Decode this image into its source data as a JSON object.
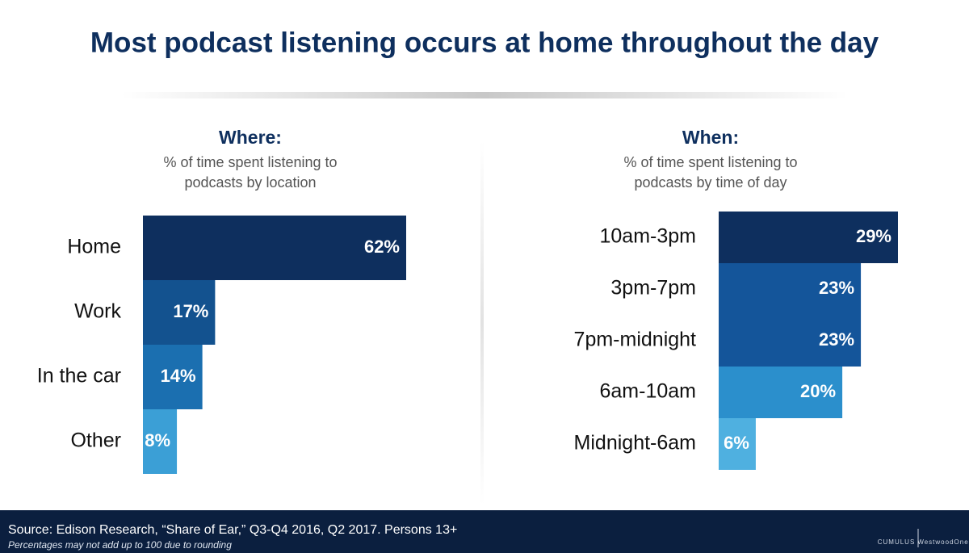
{
  "title": "Most podcast listening occurs at home throughout the day",
  "chart_data": [
    {
      "type": "bar",
      "orientation": "horizontal",
      "title": "Where:",
      "subtitle": [
        "% of time spent listening to",
        "podcasts by location"
      ],
      "categories": [
        "Home",
        "Work",
        "In the car",
        "Other"
      ],
      "values": [
        62,
        17,
        14,
        8
      ],
      "value_labels": [
        "62%",
        "17%",
        "14%",
        "8%"
      ],
      "colors": [
        "#0e2f5e",
        "#13528f",
        "#1b6fb0",
        "#3b9fd6"
      ]
    },
    {
      "type": "bar",
      "orientation": "horizontal",
      "title": "When:",
      "subtitle": [
        "% of time spent listening to",
        "podcasts by time of day"
      ],
      "categories": [
        "10am-3pm",
        "3pm-7pm",
        "7pm-midnight",
        "6am-10am",
        "Midnight-6am"
      ],
      "values": [
        29,
        23,
        23,
        20,
        6
      ],
      "value_labels": [
        "29%",
        "23%",
        "23%",
        "20%",
        "6%"
      ],
      "colors": [
        "#0e2f5e",
        "#14559a",
        "#14559a",
        "#2b8fcc",
        "#4fb0e0"
      ]
    }
  ],
  "source": "Source: Edison Research, “Share of Ear,” Q3-Q4 2016, Q2 2017. Persons 13+",
  "note": "Percentages may not add up to 100 due to rounding",
  "logos": [
    "CUMULUS",
    "WestwoodOne"
  ]
}
